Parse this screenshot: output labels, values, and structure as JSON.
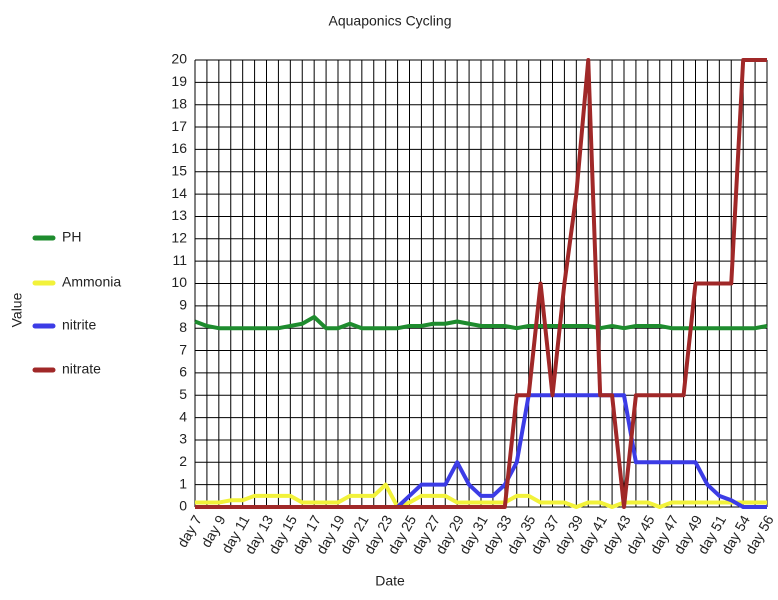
{
  "chart_data": {
    "type": "line",
    "title": "Aquaponics Cycling",
    "x_label": "Date",
    "y_label": "Value",
    "categories": [
      "day 7",
      null,
      "day 9",
      null,
      "day 11",
      null,
      "day 13",
      null,
      "day 15",
      null,
      "day 17",
      null,
      "day 19",
      null,
      "day 21",
      null,
      "day 23",
      null,
      "day 25",
      null,
      "day 27",
      null,
      "day 29",
      null,
      "day 31",
      null,
      "day 33",
      null,
      "day 35",
      null,
      "day 37",
      null,
      "day 39",
      null,
      "day 41",
      null,
      "day 43",
      null,
      "day 45",
      null,
      "day 47",
      null,
      "day 49",
      null,
      "day 51",
      null,
      "day 54",
      null,
      "day 56"
    ],
    "series": [
      {
        "name": "PH",
        "color": "#1e8c2e",
        "values": [
          8.3,
          8.1,
          8,
          8,
          8,
          8,
          8,
          8,
          8.1,
          8.2,
          8.5,
          8,
          8,
          8.2,
          8,
          8,
          8,
          8,
          8.1,
          8.1,
          8.2,
          8.2,
          8.3,
          8.2,
          8.1,
          8.1,
          8.1,
          8,
          8.1,
          8.1,
          8.1,
          8.1,
          8.1,
          8.1,
          8,
          8.1,
          8,
          8.1,
          8.1,
          8.1,
          8,
          8,
          8,
          8,
          8,
          8,
          8,
          8,
          8.1
        ]
      },
      {
        "name": "Ammonia",
        "color": "#f2f23a",
        "values": [
          0.2,
          0.2,
          0.2,
          0.3,
          0.3,
          0.5,
          0.5,
          0.5,
          0.5,
          0.2,
          0.2,
          0.2,
          0.2,
          0.5,
          0.5,
          0.5,
          1,
          0,
          0.2,
          0.5,
          0.5,
          0.5,
          0.2,
          0.2,
          0.2,
          0.2,
          0.2,
          0.5,
          0.5,
          0.2,
          0.2,
          0.2,
          0,
          0.2,
          0.2,
          0,
          0.2,
          0.2,
          0.2,
          0,
          0.2,
          0.2,
          0.2,
          0.2,
          0.2,
          0.2,
          0.2,
          0.2,
          0.2
        ]
      },
      {
        "name": "nitrite",
        "color": "#3c3ce6",
        "values": [
          0,
          0,
          0,
          0,
          0,
          0,
          0,
          0,
          0,
          0,
          0,
          0,
          0,
          0,
          0,
          0,
          0,
          0,
          0.5,
          1,
          1,
          1,
          2,
          1,
          0.5,
          0.5,
          1,
          2,
          5,
          5,
          5,
          5,
          5,
          5,
          5,
          5,
          5,
          2,
          2,
          2,
          2,
          2,
          2,
          1,
          0.5,
          0.3,
          0,
          0,
          0
        ]
      },
      {
        "name": "nitrate",
        "color": "#a02828",
        "values": [
          0,
          0,
          0,
          0,
          0,
          0,
          0,
          0,
          0,
          0,
          0,
          0,
          0,
          0,
          0,
          0,
          0,
          0,
          0,
          0,
          0,
          0,
          0,
          0,
          0,
          0,
          0,
          5,
          5,
          10,
          5,
          10,
          14,
          20,
          5,
          5,
          0,
          5,
          5,
          5,
          5,
          5,
          10,
          10,
          10,
          10,
          20,
          20,
          20
        ]
      }
    ],
    "ylim": [
      0,
      20
    ],
    "yticks": [
      0,
      1,
      2,
      3,
      4,
      5,
      6,
      7,
      8,
      9,
      10,
      11,
      12,
      13,
      14,
      15,
      16,
      17,
      18,
      19,
      20
    ],
    "grid": true,
    "legend": "left"
  }
}
